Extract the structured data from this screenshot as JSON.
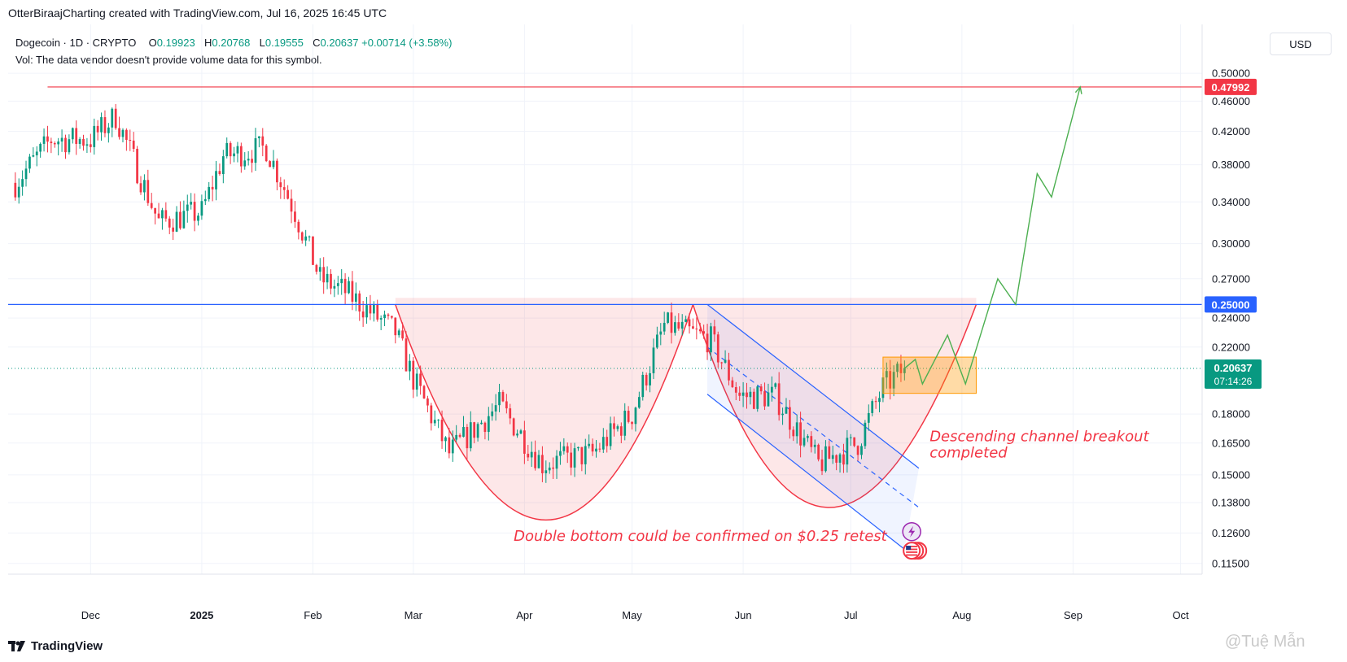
{
  "header": {
    "attribution": "OtterBiraajCharting created with TradingView.com, Jul 16, 2025 16:45 UTC"
  },
  "legend": {
    "symbol": "Dogecoin · 1D · CRYPTO",
    "o_label": "O",
    "o_value": "0.19923",
    "h_label": "H",
    "h_value": "0.20768",
    "l_label": "L",
    "l_value": "0.19555",
    "c_label": "C",
    "c_value": "0.20637",
    "change": "+0.00714 (+3.58%)",
    "vol_note": "Vol: The data vendor doesn't provide volume data for this symbol."
  },
  "currency_button": "USD",
  "footer": {
    "brand": "TradingView",
    "watermark": "@Tuệ Mẫn"
  },
  "colors": {
    "up": "#089981",
    "down": "#f23645",
    "resistance": "#f23645",
    "support": "#2962ff",
    "arc": "#f23645",
    "projection": "#4caf50",
    "zone": "#ff9800",
    "channel": "#2962ff"
  },
  "chart_data": {
    "type": "candlestick",
    "symbol": "Dogecoin",
    "timeframe": "1D",
    "y_scale": "log",
    "ylim": [
      0.113,
      0.515
    ],
    "xlim": [
      "2024-11-08",
      "2025-10-07"
    ],
    "price_ticks": [
      "0.50000",
      "0.46000",
      "0.42000",
      "0.38000",
      "0.34000",
      "0.30000",
      "0.27000",
      "0.24000",
      "0.22000",
      "0.18000",
      "0.16500",
      "0.15000",
      "0.13800",
      "0.12600",
      "0.11500"
    ],
    "time_ticks": [
      {
        "date": "2024-12-01",
        "label": "Dec",
        "bold": false
      },
      {
        "date": "2025-01-01",
        "label": "2025",
        "bold": true
      },
      {
        "date": "2025-02-01",
        "label": "Feb",
        "bold": false
      },
      {
        "date": "2025-03-01",
        "label": "Mar",
        "bold": false
      },
      {
        "date": "2025-04-01",
        "label": "Apr",
        "bold": false
      },
      {
        "date": "2025-05-01",
        "label": "May",
        "bold": false
      },
      {
        "date": "2025-06-01",
        "label": "Jun",
        "bold": false
      },
      {
        "date": "2025-07-01",
        "label": "Jul",
        "bold": false
      },
      {
        "date": "2025-08-01",
        "label": "Aug",
        "bold": false
      },
      {
        "date": "2025-09-01",
        "label": "Sep",
        "bold": false
      },
      {
        "date": "2025-10-01",
        "label": "Oct",
        "bold": false
      }
    ],
    "last_price": "0.20637",
    "countdown": "07:14:26",
    "levels": [
      {
        "name": "resistance",
        "price": 0.47992,
        "label": "0.47992",
        "from": "2024-11-19"
      },
      {
        "name": "neckline",
        "price": 0.25,
        "label": "0.25000",
        "from": "2024-11-08"
      }
    ],
    "anchors": [
      [
        "2024-11-10",
        0.36
      ],
      [
        "2024-11-20",
        0.41
      ],
      [
        "2024-12-01",
        0.41
      ],
      [
        "2024-12-08",
        0.44
      ],
      [
        "2024-12-20",
        0.32
      ],
      [
        "2025-01-01",
        0.33
      ],
      [
        "2025-01-07",
        0.39
      ],
      [
        "2025-01-19",
        0.4
      ],
      [
        "2025-01-27",
        0.33
      ],
      [
        "2025-02-03",
        0.27
      ],
      [
        "2025-02-10",
        0.26
      ],
      [
        "2025-02-24",
        0.23
      ],
      [
        "2025-03-01",
        0.2
      ],
      [
        "2025-03-11",
        0.16
      ],
      [
        "2025-03-25",
        0.185
      ],
      [
        "2025-04-06",
        0.155
      ],
      [
        "2025-04-20",
        0.16
      ],
      [
        "2025-05-01",
        0.18
      ],
      [
        "2025-05-10",
        0.235
      ],
      [
        "2025-05-23",
        0.225
      ],
      [
        "2025-05-31",
        0.19
      ],
      [
        "2025-06-10",
        0.19
      ],
      [
        "2025-06-22",
        0.155
      ],
      [
        "2025-07-03",
        0.165
      ],
      [
        "2025-07-10",
        0.195
      ],
      [
        "2025-07-16",
        0.2064
      ]
    ],
    "pattern": {
      "first_bottom": {
        "start": [
          "2025-02-24",
          0.25
        ],
        "low": [
          "2025-04-07",
          0.131
        ],
        "end": [
          "2025-05-18",
          0.25
        ]
      },
      "second_bottom": {
        "start": [
          "2025-05-18",
          0.25
        ],
        "low": [
          "2025-06-25",
          0.136
        ],
        "end": [
          "2025-08-05",
          0.25
        ]
      },
      "fill_top": 0.255
    },
    "channel": {
      "upper": [
        [
          "2025-05-22",
          0.25
        ],
        [
          "2025-07-20",
          0.153
        ]
      ],
      "lower": [
        [
          "2025-05-22",
          0.191
        ],
        [
          "2025-07-16",
          0.12
        ]
      ],
      "mid": [
        [
          "2025-05-22",
          0.22
        ],
        [
          "2025-07-20",
          0.136
        ]
      ]
    },
    "zone": {
      "from": "2025-07-10",
      "to": "2025-08-05",
      "top": 0.2135,
      "bottom": 0.1915
    },
    "projection": [
      [
        "2025-07-16",
        0.2064
      ],
      [
        "2025-07-19",
        0.212
      ],
      [
        "2025-07-21",
        0.197
      ],
      [
        "2025-07-28",
        0.228
      ],
      [
        "2025-08-02",
        0.197
      ],
      [
        "2025-08-11",
        0.27
      ],
      [
        "2025-08-16",
        0.25
      ],
      [
        "2025-08-22",
        0.37
      ],
      [
        "2025-08-26",
        0.345
      ],
      [
        "2025-09-03",
        0.48
      ]
    ],
    "annotations": [
      {
        "text": "Descending channel breakout",
        "date": "2025-07-23",
        "price": 0.166
      },
      {
        "text": "completed",
        "date": "2025-07-23",
        "price": 0.158
      },
      {
        "text": "Double bottom could be confirmed on $0.25 retest",
        "date": "2025-03-29",
        "price": 0.123
      }
    ]
  }
}
